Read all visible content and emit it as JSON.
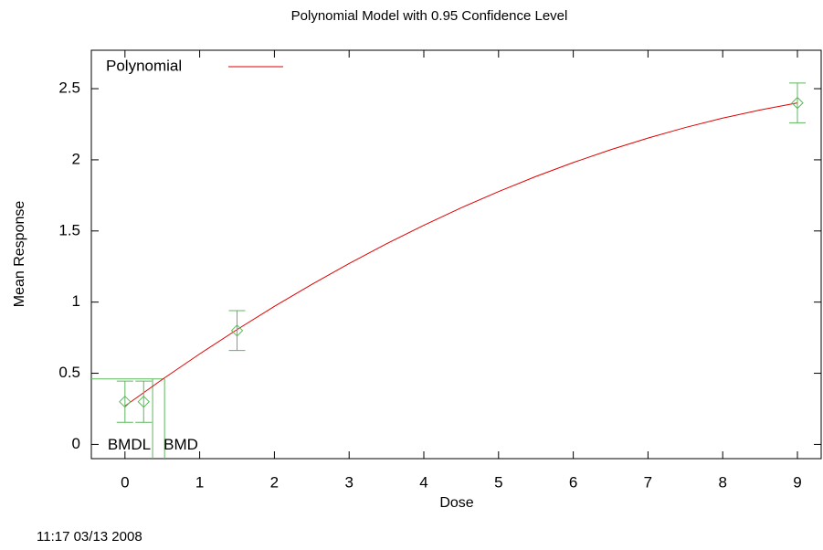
{
  "chart_data": {
    "type": "line",
    "title": "Polynomial Model with 0.95 Confidence Level",
    "xlabel": "Dose",
    "ylabel": "Mean Response",
    "xlim": [
      -0.45,
      9.33
    ],
    "ylim": [
      -0.1,
      2.77
    ],
    "xticks": [
      0,
      1,
      2,
      3,
      4,
      5,
      6,
      7,
      8,
      9
    ],
    "yticks": [
      0,
      0.5,
      1,
      1.5,
      2,
      2.5
    ],
    "legend": "upper left",
    "series": [
      {
        "name": "Polynomial",
        "color": "#e00000",
        "x": [
          0,
          0.5,
          1,
          1.5,
          2,
          2.5,
          3,
          3.5,
          4,
          4.5,
          5,
          5.5,
          6,
          6.5,
          7,
          7.5,
          8,
          8.5,
          9
        ],
        "values": [
          0.27,
          0.457,
          0.636,
          0.807,
          0.97,
          1.124,
          1.271,
          1.41,
          1.54,
          1.663,
          1.777,
          1.883,
          1.981,
          2.071,
          2.153,
          2.227,
          2.293,
          2.35,
          2.4
        ]
      }
    ],
    "observations": {
      "color": "#5cb85c",
      "x": [
        0,
        0.25,
        1.5,
        9
      ],
      "values": [
        0.3,
        0.3,
        0.8,
        2.4
      ],
      "errors": [
        0.145,
        0.145,
        0.14,
        0.14
      ]
    },
    "bmr_response": 0.46,
    "bmd": {
      "label": "BMD",
      "x": 0.53
    },
    "bmdl": {
      "label": "BMDL",
      "x": 0.37
    }
  },
  "footer": {
    "timestamp": "11:17 03/13 2008"
  }
}
